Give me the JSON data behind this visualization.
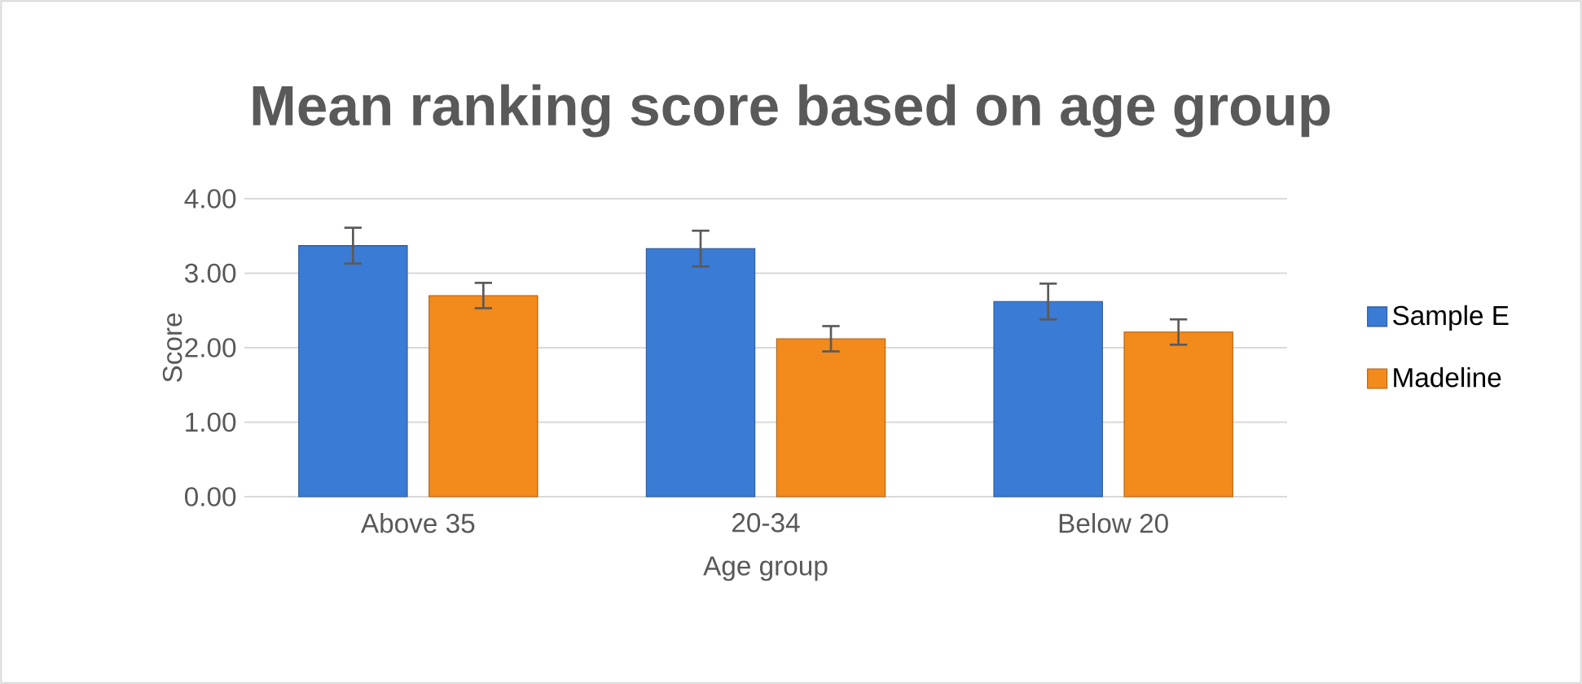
{
  "chart_data": {
    "type": "bar",
    "title": "Mean ranking score based on age group",
    "xlabel": "Age group",
    "ylabel": "Score",
    "categories": [
      "Above 35",
      "20-34",
      "Below 20"
    ],
    "series": [
      {
        "name": "Sample E",
        "color": "#3a7bd5",
        "values": [
          3.37,
          3.33,
          2.62
        ],
        "errors": [
          0.24,
          0.24,
          0.24
        ]
      },
      {
        "name": "Madeline",
        "color": "#f28a1c",
        "values": [
          2.7,
          2.12,
          2.21
        ],
        "errors": [
          0.17,
          0.17,
          0.17
        ]
      }
    ],
    "ylim": [
      0,
      4
    ],
    "yticks": [
      {
        "value": 0,
        "label": "0.00"
      },
      {
        "value": 1,
        "label": "1.00"
      },
      {
        "value": 2,
        "label": "2.00"
      },
      {
        "value": 3,
        "label": "3.00"
      },
      {
        "value": 4,
        "label": "4.00"
      }
    ],
    "grid": "y",
    "legend": "right"
  }
}
